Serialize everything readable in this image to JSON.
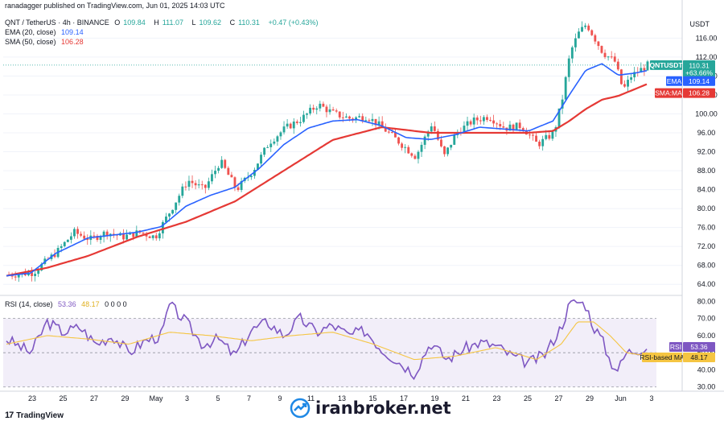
{
  "header": {
    "published": "ranadagger published on TradingView.com, Jun 01, 2025 14:03 UTC",
    "symbol": "QNT / TetherUS · 4h · BINANCE",
    "ohlc": {
      "o_label": "O",
      "o": "109.84",
      "h_label": "H",
      "h": "111.07",
      "l_label": "L",
      "l": "109.62",
      "c_label": "C",
      "c": "110.31",
      "change": "+0.47 (+0.43%)"
    },
    "ema_label": "EMA (20, close)",
    "ema_value": "109.14",
    "sma_label": "SMA (50, close)",
    "sma_value": "106.28",
    "rsi_label": "RSI (14, close)",
    "rsi_value": "53.36",
    "rsi_ma_value": "48.17",
    "rsi_zeros": "0 0 0 0"
  },
  "currency": "USDT",
  "price_badges": {
    "symbol": "QNTUSDT",
    "price": "110.31",
    "pct": "+63.66%",
    "countdown": "01:56:22",
    "ema_tag": "EMA",
    "ema_val": "109.14",
    "sma_tag": "SMA:MA",
    "sma_val": "106.28",
    "rsi_tag": "RSI",
    "rsi_val": "53.36",
    "rsi_ma_tag": "RSI-based MA",
    "rsi_ma_val": "48.17"
  },
  "footer": {
    "brand": "TradingView",
    "watermark": "iranbroker.net"
  },
  "colors": {
    "up": "#26a69a",
    "down": "#ef5350",
    "ema": "#2962ff",
    "sma": "#e53935",
    "rsi": "#7e57c2",
    "rsi_ma": "#f5c542",
    "rsi_band": "#ede7f6",
    "grid": "#f0f3fa"
  },
  "chart_data": [
    {
      "type": "candlestick",
      "y_ticks": [
        64.0,
        68.0,
        72.0,
        76.0,
        80.0,
        84.0,
        88.0,
        92.0,
        96.0,
        100.0,
        104.0,
        108.0,
        112.0,
        116.0
      ],
      "ylim": [
        62,
        121
      ],
      "x_ticks": [
        "23",
        "25",
        "27",
        "29",
        "May",
        "3",
        "5",
        "7",
        "9",
        "11",
        "13",
        "15",
        "17",
        "19",
        "21",
        "23",
        "25",
        "27",
        "29",
        "Jun",
        "3"
      ],
      "series": [
        {
          "name": "EMA (20, close)",
          "anchors": [
            [
              0,
              65.8
            ],
            [
              3,
              66.4
            ],
            [
              6,
              70.5
            ],
            [
              10,
              73.8
            ],
            [
              13,
              74.4
            ],
            [
              16,
              75.0
            ],
            [
              19,
              76.2
            ],
            [
              22,
              80.5
            ],
            [
              25,
              82.8
            ],
            [
              28,
              84.5
            ],
            [
              31,
              88.5
            ],
            [
              34,
              93.5
            ],
            [
              37,
              97.0
            ],
            [
              40,
              98.5
            ],
            [
              43,
              98.8
            ],
            [
              46,
              97.5
            ],
            [
              49,
              95.0
            ],
            [
              52,
              94.6
            ],
            [
              55,
              95.6
            ],
            [
              58,
              97.2
            ],
            [
              61,
              96.8
            ],
            [
              64,
              96.4
            ],
            [
              67,
              98.5
            ],
            [
              69,
              104.0
            ],
            [
              71,
              109.2
            ],
            [
              73,
              110.6
            ],
            [
              75,
              108.2
            ],
            [
              77,
              108.6
            ],
            [
              78.5,
              109.14
            ]
          ]
        },
        {
          "name": "SMA (50, close)",
          "anchors": [
            [
              0,
              65.8
            ],
            [
              5,
              67.5
            ],
            [
              10,
              70.0
            ],
            [
              16,
              74.0
            ],
            [
              22,
              77.2
            ],
            [
              28,
              81.5
            ],
            [
              34,
              88.0
            ],
            [
              40,
              94.5
            ],
            [
              46,
              97.2
            ],
            [
              52,
              96.0
            ],
            [
              58,
              96.0
            ],
            [
              64,
              96.0
            ],
            [
              67,
              96.4
            ],
            [
              69,
              98.5
            ],
            [
              71,
              101.0
            ],
            [
              73,
              103.0
            ],
            [
              75,
              103.8
            ],
            [
              77,
              105.2
            ],
            [
              78.5,
              106.28
            ]
          ]
        }
      ],
      "price_anchors": [
        [
          0,
          66.0
        ],
        [
          3,
          66.5
        ],
        [
          6,
          71.0
        ],
        [
          8,
          75.0
        ],
        [
          10,
          73.5
        ],
        [
          12,
          75.0
        ],
        [
          14,
          74.0
        ],
        [
          16,
          75.0
        ],
        [
          18,
          74.0
        ],
        [
          20,
          80.0
        ],
        [
          22,
          86.0
        ],
        [
          24,
          84.0
        ],
        [
          26,
          90.0
        ],
        [
          28,
          84.0
        ],
        [
          30,
          88.0
        ],
        [
          32,
          94.0
        ],
        [
          34,
          97.0
        ],
        [
          36,
          99.0
        ],
        [
          38,
          102.0
        ],
        [
          40,
          100.0
        ],
        [
          42,
          99.0
        ],
        [
          44,
          99.5
        ],
        [
          46,
          97.0
        ],
        [
          48,
          94.0
        ],
        [
          50,
          91.0
        ],
        [
          52,
          98.0
        ],
        [
          53.5,
          91.0
        ],
        [
          55,
          96.0
        ],
        [
          57,
          98.5
        ],
        [
          59,
          99.5
        ],
        [
          61,
          97.0
        ],
        [
          63,
          97.5
        ],
        [
          65,
          93.5
        ],
        [
          67,
          96.0
        ],
        [
          68,
          103.0
        ],
        [
          69,
          113.0
        ],
        [
          70,
          117.0
        ],
        [
          71,
          119.0
        ],
        [
          72,
          116.0
        ],
        [
          73,
          113.0
        ],
        [
          74.5,
          111.0
        ],
        [
          75.5,
          105.0
        ],
        [
          76.5,
          108.0
        ],
        [
          78.5,
          110.3
        ]
      ]
    },
    {
      "type": "line",
      "title": "RSI (14, close)",
      "y_ticks": [
        30.0,
        40.0,
        50.0,
        60.0,
        70.0,
        80.0
      ],
      "ylim": [
        28,
        83
      ],
      "band": [
        30,
        70
      ],
      "series": [
        {
          "name": "RSI",
          "anchors": [
            [
              0,
              58
            ],
            [
              3,
              50
            ],
            [
              5,
              68
            ],
            [
              7,
              62
            ],
            [
              9,
              65
            ],
            [
              11,
              55
            ],
            [
              13,
              60
            ],
            [
              15,
              50
            ],
            [
              17,
              57
            ],
            [
              19,
              60
            ],
            [
              20,
              78
            ],
            [
              22,
              68
            ],
            [
              24,
              55
            ],
            [
              26,
              58
            ],
            [
              28,
              48
            ],
            [
              30,
              63
            ],
            [
              32,
              68
            ],
            [
              34,
              60
            ],
            [
              36,
              70
            ],
            [
              38,
              62
            ],
            [
              40,
              66
            ],
            [
              42,
              60
            ],
            [
              44,
              63
            ],
            [
              46,
              52
            ],
            [
              48,
              45
            ],
            [
              50,
              38
            ],
            [
              52,
              56
            ],
            [
              54,
              46
            ],
            [
              56,
              52
            ],
            [
              58,
              56
            ],
            [
              60,
              54
            ],
            [
              62,
              48
            ],
            [
              64,
              44
            ],
            [
              66,
              49
            ],
            [
              68,
              65
            ],
            [
              69,
              78
            ],
            [
              70,
              80
            ],
            [
              71,
              78
            ],
            [
              72,
              65
            ],
            [
              73,
              58
            ],
            [
              74,
              45
            ],
            [
              75,
              40
            ],
            [
              76,
              50
            ],
            [
              78.5,
              53.36
            ]
          ]
        },
        {
          "name": "RSI-based MA",
          "anchors": [
            [
              0,
              55
            ],
            [
              5,
              60
            ],
            [
              10,
              58
            ],
            [
              15,
              55
            ],
            [
              20,
              62
            ],
            [
              25,
              60
            ],
            [
              30,
              57
            ],
            [
              35,
              60
            ],
            [
              40,
              62
            ],
            [
              45,
              55
            ],
            [
              50,
              46
            ],
            [
              55,
              48
            ],
            [
              60,
              53
            ],
            [
              65,
              46
            ],
            [
              68,
              55
            ],
            [
              70,
              68
            ],
            [
              72,
              68
            ],
            [
              74,
              60
            ],
            [
              76,
              50
            ],
            [
              78.5,
              48.17
            ]
          ]
        }
      ]
    }
  ]
}
